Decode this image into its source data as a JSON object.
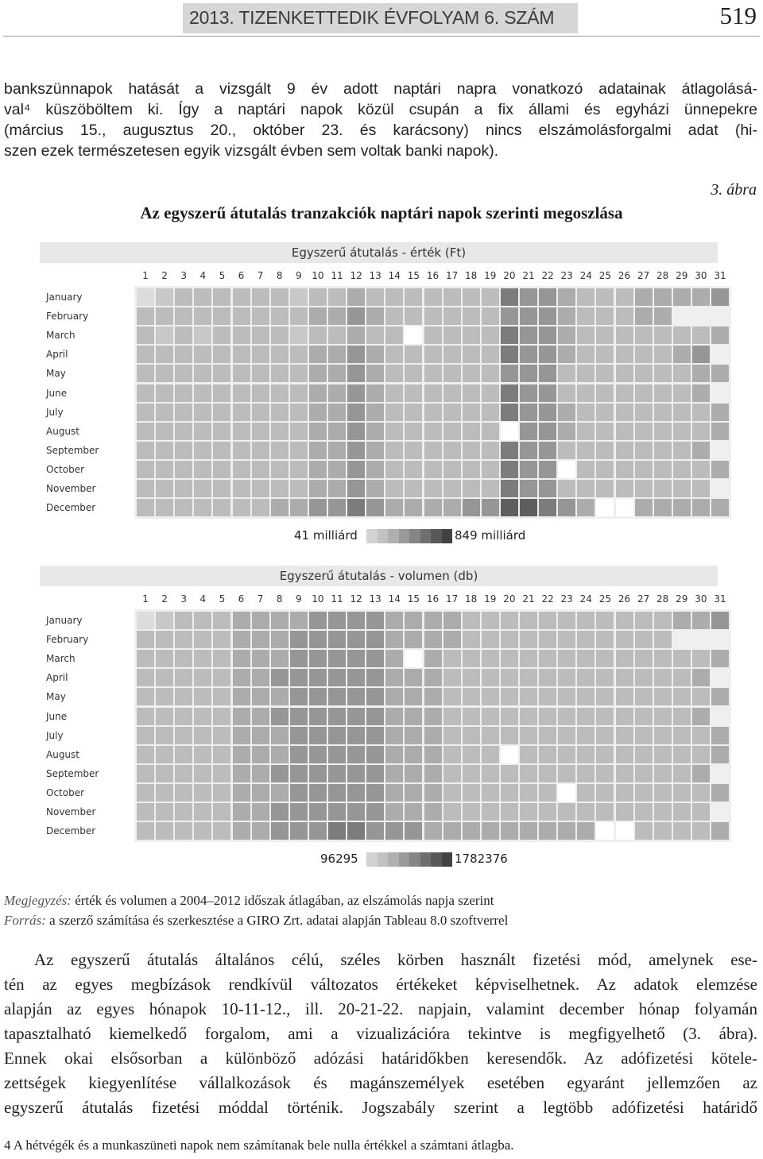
{
  "header": {
    "title": "2013. TIZENKETTEDIK ÉVFOLYAM 6. SZÁM",
    "page_number": "519"
  },
  "intro_paragraph": [
    "bankszünnapok hatását a vizsgált 9 év adott naptári napra vonatkozó adatainak átlagolásá-",
    "val⁴ küszöböltem ki. Így a naptári napok közül csupán a fix állami és egyházi ünnepekre",
    "(március 15., augusztus 20., október 23. és karácsony) nincs elszámolásforgalmi adat (hi-",
    "szen ezek természetesen egyik vizsgált évben sem voltak banki napok)."
  ],
  "figure": {
    "label": "3. ábra",
    "title": "Az egyszerű átutalás tranzakciók naptári napok szerinti megoszlása"
  },
  "chart_data": [
    {
      "type": "heatmap",
      "title": "Egyszerű átutalás - érték (Ft)",
      "x": [
        "1",
        "2",
        "3",
        "4",
        "5",
        "6",
        "7",
        "8",
        "9",
        "10",
        "11",
        "12",
        "13",
        "14",
        "15",
        "16",
        "17",
        "18",
        "19",
        "20",
        "21",
        "22",
        "23",
        "24",
        "25",
        "26",
        "27",
        "28",
        "29",
        "30",
        "31"
      ],
      "y": [
        "January",
        "February",
        "March",
        "April",
        "May",
        "June",
        "July",
        "August",
        "September",
        "October",
        "November",
        "December"
      ],
      "legend_min_label": "41 milliárd",
      "legend_max_label": "849 milliárd",
      "legend_colors": [
        "#d2d2d2",
        "#c2c2c2",
        "#b0b0b0",
        "#9a9a9a",
        "#858585",
        "#6e6e6e",
        "#585858",
        "#424242"
      ],
      "values": [
        [
          0,
          2,
          3,
          3,
          3,
          3,
          3,
          3,
          2,
          3,
          3,
          4,
          3,
          3,
          3,
          3,
          3,
          3,
          3,
          6,
          5,
          5,
          4,
          3,
          3,
          3,
          4,
          4,
          4,
          4,
          5
        ],
        [
          3,
          3,
          3,
          3,
          3,
          3,
          3,
          3,
          3,
          4,
          4,
          5,
          4,
          3,
          3,
          3,
          3,
          3,
          3,
          5,
          5,
          5,
          4,
          3,
          3,
          3,
          4,
          4,
          -2,
          -2,
          -2
        ],
        [
          3,
          2,
          3,
          2,
          3,
          3,
          3,
          3,
          2,
          3,
          3,
          4,
          3,
          3,
          -1,
          3,
          3,
          3,
          3,
          6,
          5,
          5,
          4,
          3,
          3,
          3,
          3,
          3,
          3,
          3,
          4
        ],
        [
          3,
          3,
          3,
          3,
          3,
          3,
          3,
          3,
          3,
          4,
          4,
          5,
          4,
          3,
          3,
          3,
          3,
          3,
          3,
          6,
          5,
          5,
          4,
          3,
          3,
          3,
          3,
          3,
          4,
          5,
          -2
        ],
        [
          3,
          3,
          3,
          3,
          3,
          3,
          3,
          3,
          3,
          4,
          4,
          5,
          4,
          3,
          3,
          3,
          3,
          3,
          3,
          5,
          5,
          5,
          3,
          3,
          3,
          3,
          3,
          3,
          3,
          4,
          4
        ],
        [
          3,
          3,
          3,
          3,
          3,
          3,
          3,
          3,
          3,
          4,
          4,
          5,
          4,
          3,
          3,
          3,
          3,
          3,
          3,
          6,
          5,
          5,
          3,
          3,
          3,
          3,
          3,
          3,
          3,
          4,
          -2
        ],
        [
          3,
          3,
          3,
          3,
          3,
          3,
          3,
          3,
          3,
          4,
          4,
          5,
          4,
          3,
          3,
          3,
          3,
          3,
          3,
          6,
          5,
          5,
          4,
          3,
          3,
          3,
          3,
          3,
          3,
          3,
          4
        ],
        [
          3,
          3,
          3,
          3,
          3,
          3,
          3,
          3,
          3,
          4,
          4,
          5,
          4,
          3,
          3,
          3,
          3,
          3,
          3,
          -1,
          5,
          5,
          4,
          3,
          3,
          3,
          3,
          3,
          3,
          3,
          4
        ],
        [
          3,
          3,
          3,
          3,
          3,
          3,
          3,
          3,
          3,
          4,
          4,
          5,
          4,
          3,
          3,
          3,
          3,
          3,
          3,
          6,
          5,
          5,
          3,
          3,
          3,
          3,
          3,
          3,
          3,
          4,
          -2
        ],
        [
          3,
          3,
          3,
          3,
          3,
          3,
          3,
          3,
          3,
          4,
          4,
          5,
          4,
          3,
          3,
          3,
          3,
          3,
          3,
          6,
          5,
          5,
          -1,
          3,
          3,
          3,
          3,
          3,
          3,
          3,
          4
        ],
        [
          3,
          3,
          3,
          3,
          3,
          3,
          3,
          3,
          3,
          4,
          4,
          5,
          4,
          3,
          3,
          3,
          3,
          3,
          3,
          6,
          5,
          5,
          3,
          3,
          3,
          3,
          3,
          3,
          3,
          3,
          -2
        ],
        [
          3,
          3,
          3,
          3,
          3,
          3,
          3,
          4,
          4,
          5,
          5,
          6,
          5,
          4,
          4,
          4,
          4,
          5,
          5,
          7,
          7,
          6,
          5,
          4,
          -1,
          -1,
          4,
          4,
          4,
          4,
          4
        ]
      ]
    },
    {
      "type": "heatmap",
      "title": "Egyszerű átutalás - volumen (db)",
      "x": [
        "1",
        "2",
        "3",
        "4",
        "5",
        "6",
        "7",
        "8",
        "9",
        "10",
        "11",
        "12",
        "13",
        "14",
        "15",
        "16",
        "17",
        "18",
        "19",
        "20",
        "21",
        "22",
        "23",
        "24",
        "25",
        "26",
        "27",
        "28",
        "29",
        "30",
        "31"
      ],
      "y": [
        "January",
        "February",
        "March",
        "April",
        "May",
        "June",
        "July",
        "August",
        "September",
        "October",
        "November",
        "December"
      ],
      "legend_min_label": "96295",
      "legend_max_label": "1782376",
      "legend_colors": [
        "#d2d2d2",
        "#c2c2c2",
        "#b0b0b0",
        "#9a9a9a",
        "#858585",
        "#6e6e6e",
        "#585858",
        "#424242"
      ],
      "values": [
        [
          0,
          2,
          3,
          3,
          3,
          4,
          4,
          4,
          4,
          5,
          5,
          5,
          5,
          4,
          4,
          4,
          4,
          3,
          3,
          3,
          3,
          3,
          3,
          3,
          3,
          3,
          3,
          3,
          4,
          4,
          5
        ],
        [
          3,
          3,
          3,
          3,
          3,
          4,
          4,
          4,
          5,
          5,
          5,
          5,
          5,
          4,
          4,
          4,
          4,
          3,
          3,
          3,
          3,
          3,
          3,
          3,
          3,
          3,
          3,
          3,
          -2,
          -2,
          -2
        ],
        [
          3,
          3,
          3,
          3,
          3,
          4,
          4,
          4,
          5,
          5,
          5,
          5,
          5,
          4,
          -1,
          4,
          3,
          3,
          3,
          3,
          3,
          3,
          3,
          3,
          3,
          3,
          3,
          3,
          3,
          3,
          4
        ],
        [
          3,
          3,
          3,
          3,
          3,
          4,
          4,
          5,
          5,
          5,
          5,
          5,
          5,
          4,
          4,
          4,
          3,
          3,
          3,
          3,
          3,
          3,
          3,
          3,
          3,
          3,
          3,
          3,
          3,
          4,
          -2
        ],
        [
          3,
          3,
          3,
          3,
          3,
          4,
          4,
          4,
          5,
          5,
          5,
          5,
          5,
          4,
          4,
          4,
          3,
          3,
          3,
          3,
          3,
          3,
          3,
          3,
          3,
          3,
          3,
          3,
          3,
          3,
          4
        ],
        [
          3,
          3,
          3,
          3,
          3,
          4,
          4,
          5,
          5,
          5,
          5,
          5,
          5,
          4,
          4,
          4,
          3,
          3,
          3,
          3,
          3,
          3,
          3,
          3,
          3,
          3,
          3,
          3,
          3,
          4,
          -2
        ],
        [
          3,
          3,
          3,
          3,
          3,
          4,
          4,
          4,
          5,
          5,
          5,
          5,
          5,
          4,
          4,
          4,
          3,
          3,
          3,
          3,
          3,
          3,
          3,
          3,
          3,
          3,
          3,
          3,
          3,
          3,
          4
        ],
        [
          3,
          3,
          3,
          3,
          3,
          4,
          4,
          4,
          5,
          5,
          5,
          5,
          5,
          4,
          4,
          4,
          3,
          3,
          3,
          -1,
          3,
          3,
          3,
          3,
          3,
          3,
          3,
          3,
          3,
          3,
          4
        ],
        [
          3,
          3,
          3,
          3,
          3,
          4,
          4,
          5,
          5,
          5,
          5,
          5,
          5,
          4,
          4,
          4,
          3,
          3,
          3,
          3,
          3,
          3,
          3,
          3,
          3,
          3,
          3,
          3,
          3,
          4,
          -2
        ],
        [
          3,
          3,
          3,
          3,
          3,
          4,
          4,
          4,
          5,
          5,
          5,
          5,
          5,
          4,
          4,
          4,
          3,
          3,
          3,
          3,
          3,
          3,
          -1,
          3,
          3,
          3,
          3,
          3,
          3,
          3,
          4
        ],
        [
          3,
          3,
          3,
          3,
          3,
          4,
          4,
          5,
          5,
          5,
          5,
          5,
          5,
          4,
          4,
          4,
          3,
          3,
          3,
          3,
          3,
          3,
          3,
          3,
          3,
          3,
          3,
          3,
          3,
          3,
          -2
        ],
        [
          3,
          3,
          3,
          3,
          3,
          4,
          4,
          5,
          5,
          5,
          6,
          6,
          5,
          5,
          5,
          4,
          4,
          4,
          4,
          4,
          4,
          4,
          4,
          4,
          -1,
          -1,
          3,
          3,
          3,
          3,
          4
        ]
      ]
    }
  ],
  "notes": {
    "note_label": "Megjegyzés:",
    "note_text": " érték és volumen a 2004–2012 időszak átlagában, az elszámolás napja szerint",
    "source_label": "Forrás:",
    "source_text": " a szerző számítása és szerkesztése a GIRO Zrt. adatai alapján Tableau 8.0 szoftverrel"
  },
  "body_paragraph": [
    "Az egyszerű átutalás általános célú, széles körben használt fizetési mód, amelynek ese-",
    "tén az egyes megbízások rendkívül változatos értékeket képviselhetnek. Az adatok elemzése",
    "alapján az egyes hónapok 10-11-12., ill. 20-21-22. napjain, valamint december hónap folyamán",
    "tapasztalható kiemelkedő forgalom, ami a vizualizációra tekintve is megfigyelhető (3. ábra).",
    "Ennek okai elsősorban a különböző adózási határidőkben keresendők. Az adófizetési kötele-",
    "zettségek kiegyenlítése vállalkozások és magánszemélyek esetében egyaránt jellemzően az",
    "egyszerű átutalás fizetési móddal történik. Jogszabály szerint a legtöbb adófizetési határidő"
  ],
  "footnote": "4 A hétvégék és a munkaszüneti napok nem számítanak bele nulla értékkel a számtani átlagba."
}
